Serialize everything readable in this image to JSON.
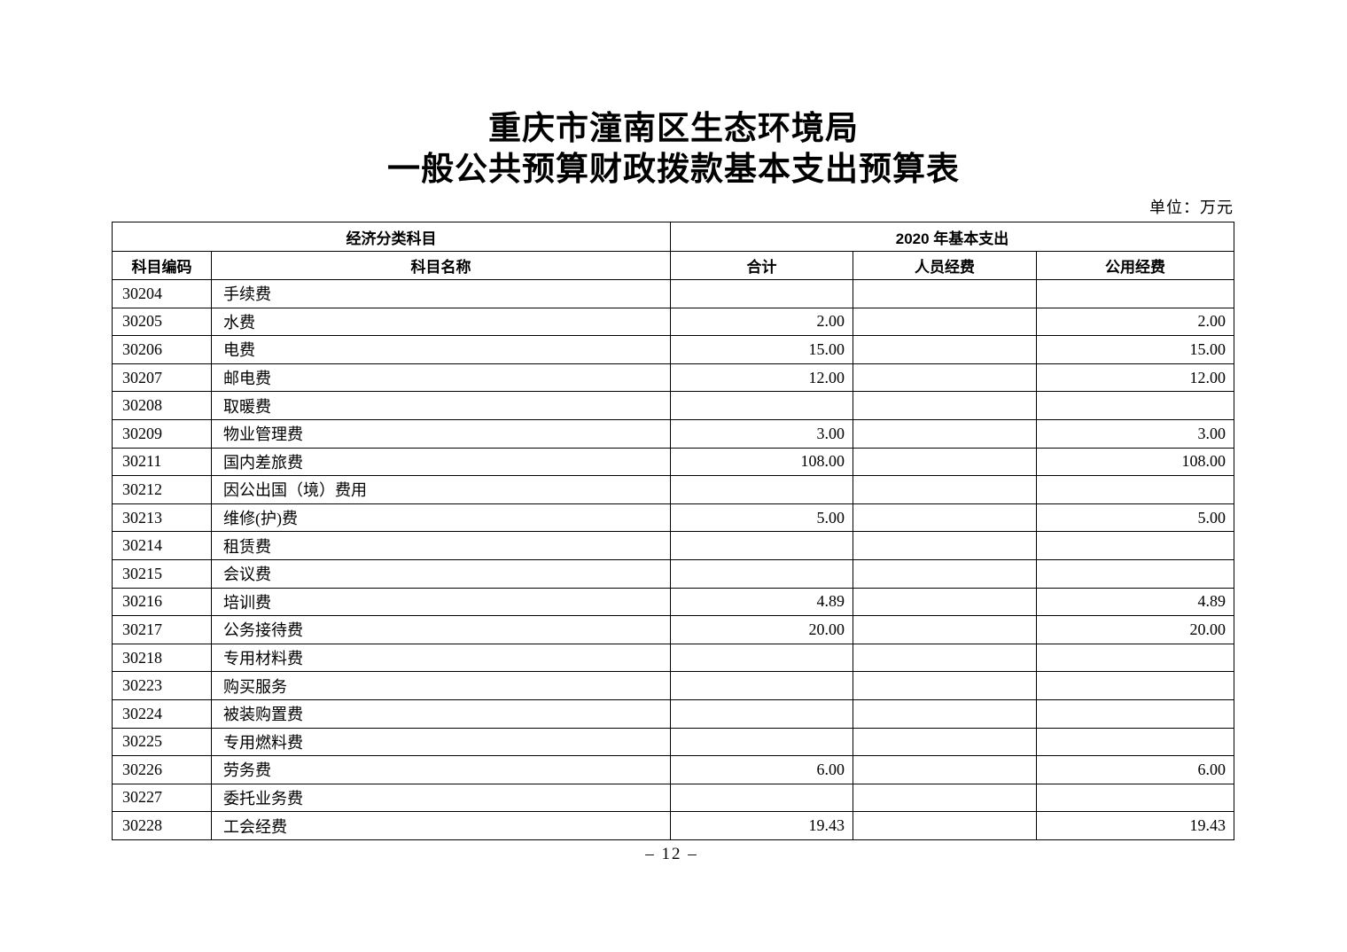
{
  "document": {
    "title_line1": "重庆市潼南区生态环境局",
    "title_line2": "一般公共预算财政拨款基本支出预算表",
    "unit_note": "单位：万元",
    "page_number": "– 12 –"
  },
  "table": {
    "group_header": {
      "left": "经济分类科目",
      "right": "2020 年基本支出"
    },
    "columns": {
      "code": "科目编码",
      "name": "科目名称",
      "total": "合计",
      "personnel": "人员经费",
      "public": "公用经费"
    },
    "rows": [
      [
        "30204",
        "手续费",
        "",
        "",
        ""
      ],
      [
        "30205",
        "水费",
        "2.00",
        "",
        "2.00"
      ],
      [
        "30206",
        "电费",
        "15.00",
        "",
        "15.00"
      ],
      [
        "30207",
        "邮电费",
        "12.00",
        "",
        "12.00"
      ],
      [
        "30208",
        "取暖费",
        "",
        "",
        ""
      ],
      [
        "30209",
        "物业管理费",
        "3.00",
        "",
        "3.00"
      ],
      [
        "30211",
        "国内差旅费",
        "108.00",
        "",
        "108.00"
      ],
      [
        "30212",
        "因公出国（境）费用",
        "",
        "",
        ""
      ],
      [
        "30213",
        "维修(护)费",
        "5.00",
        "",
        "5.00"
      ],
      [
        "30214",
        "租赁费",
        "",
        "",
        ""
      ],
      [
        "30215",
        "会议费",
        "",
        "",
        ""
      ],
      [
        "30216",
        "培训费",
        "4.89",
        "",
        "4.89"
      ],
      [
        "30217",
        "公务接待费",
        "20.00",
        "",
        "20.00"
      ],
      [
        "30218",
        "专用材料费",
        "",
        "",
        ""
      ],
      [
        "30223",
        "购买服务",
        "",
        "",
        ""
      ],
      [
        "30224",
        "被装购置费",
        "",
        "",
        ""
      ],
      [
        "30225",
        "专用燃料费",
        "",
        "",
        ""
      ],
      [
        "30226",
        "劳务费",
        "6.00",
        "",
        "6.00"
      ],
      [
        "30227",
        "委托业务费",
        "",
        "",
        ""
      ],
      [
        "30228",
        "工会经费",
        "19.43",
        "",
        "19.43"
      ]
    ]
  }
}
